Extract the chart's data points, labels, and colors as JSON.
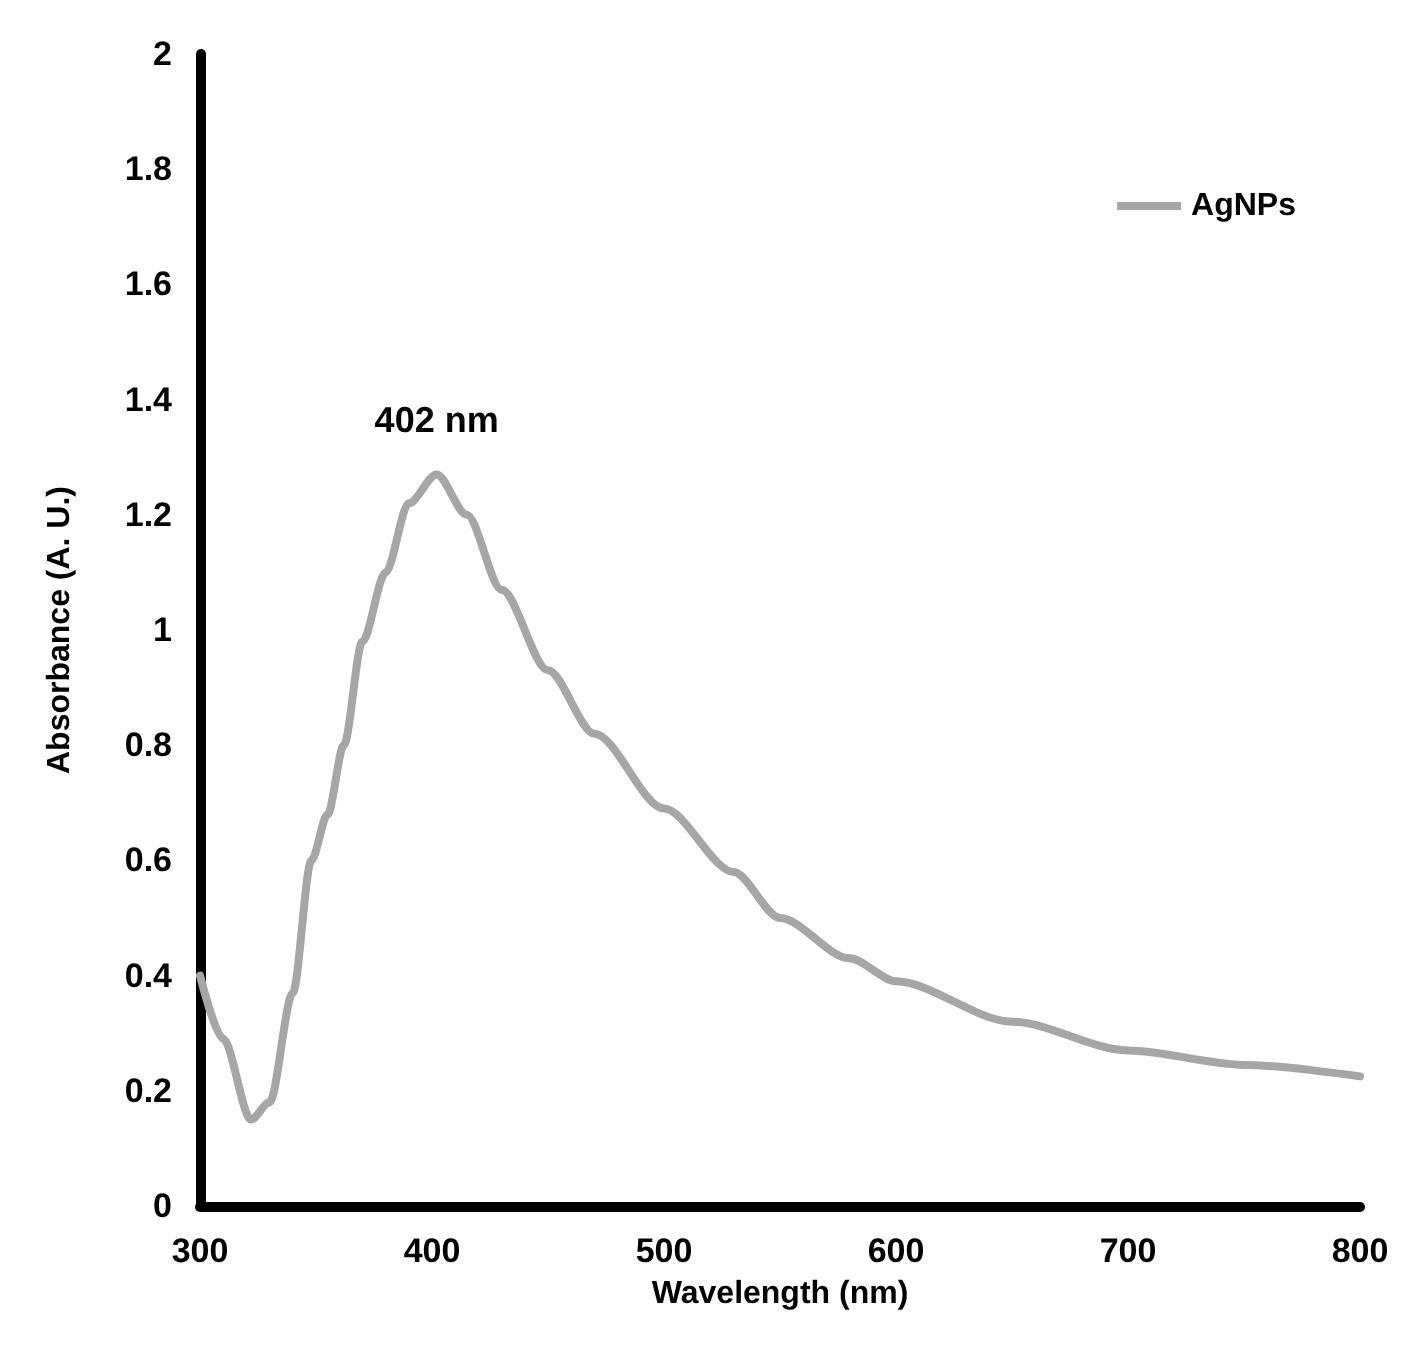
{
  "chart_data": {
    "type": "line",
    "xlabel": "Wavelength (nm)",
    "ylabel": "Absorbance (A. U.)",
    "xlim": [
      300,
      800
    ],
    "xticks": [
      300,
      400,
      500,
      600,
      700,
      800
    ],
    "ylim": [
      0,
      2
    ],
    "yticks": [
      0,
      0.2,
      0.4,
      0.6,
      0.8,
      1,
      1.2,
      1.4,
      1.6,
      1.8,
      2
    ],
    "grid": false,
    "legend": "top right",
    "marker": "none",
    "line_style": "solid",
    "annotations": [
      {
        "text": "402 nm",
        "x": 402,
        "y": 1.27
      }
    ],
    "series": [
      {
        "name": "AgNPs",
        "color": "#a6a6a6",
        "x": [
          300,
          310,
          322,
          330,
          340,
          348,
          355,
          362,
          370,
          380,
          390,
          402,
          415,
          430,
          450,
          470,
          500,
          530,
          550,
          580,
          600,
          650,
          700,
          750,
          800
        ],
        "values": [
          0.4,
          0.29,
          0.15,
          0.18,
          0.37,
          0.6,
          0.68,
          0.8,
          0.98,
          1.1,
          1.22,
          1.27,
          1.2,
          1.07,
          0.93,
          0.82,
          0.69,
          0.58,
          0.5,
          0.43,
          0.39,
          0.32,
          0.27,
          0.245,
          0.225
        ]
      }
    ]
  }
}
